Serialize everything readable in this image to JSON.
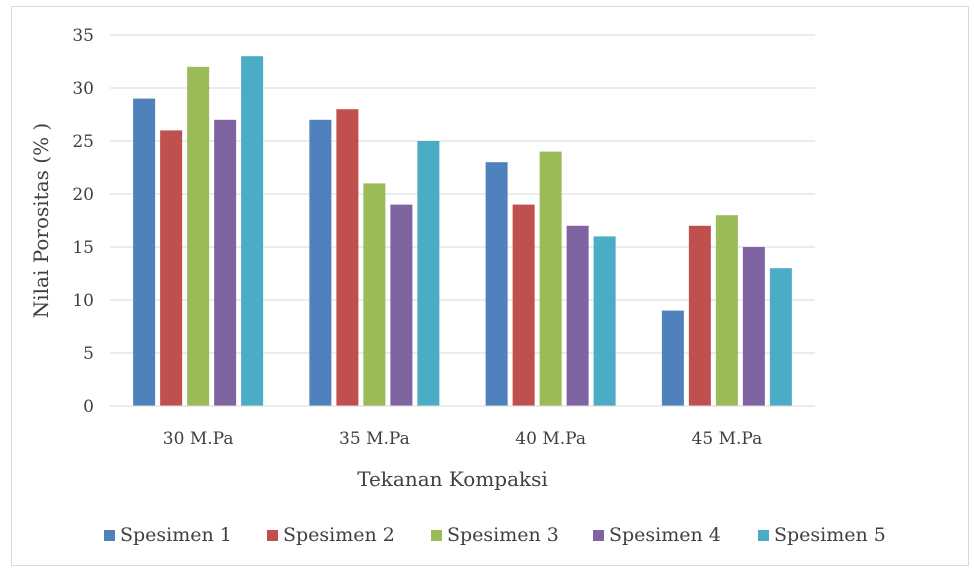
{
  "chart_data": {
    "type": "bar",
    "categories": [
      "30 M.Pa",
      "35 M.Pa",
      "40 M.Pa",
      "45 M.Pa"
    ],
    "series": [
      {
        "name": "Spesimen 1",
        "color": "#4f81bd",
        "values": [
          29,
          27,
          23,
          9
        ]
      },
      {
        "name": "Spesimen 2",
        "color": "#c0504d",
        "values": [
          26,
          28,
          19,
          17
        ]
      },
      {
        "name": "Spesimen 3",
        "color": "#9bbb59",
        "values": [
          32,
          21,
          24,
          18
        ]
      },
      {
        "name": "Spesimen 4",
        "color": "#8064a2",
        "values": [
          27,
          19,
          17,
          15
        ]
      },
      {
        "name": "Spesimen 5",
        "color": "#4bacc6",
        "values": [
          33,
          25,
          16,
          13
        ]
      }
    ],
    "xlabel": "Tekanan Kompaksi",
    "ylabel": "Nilai Porositas (% )",
    "ylim": [
      0,
      35
    ],
    "yticks": [
      0,
      5,
      10,
      15,
      20,
      25,
      30,
      35
    ],
    "grid": true,
    "legend_position": "bottom"
  }
}
